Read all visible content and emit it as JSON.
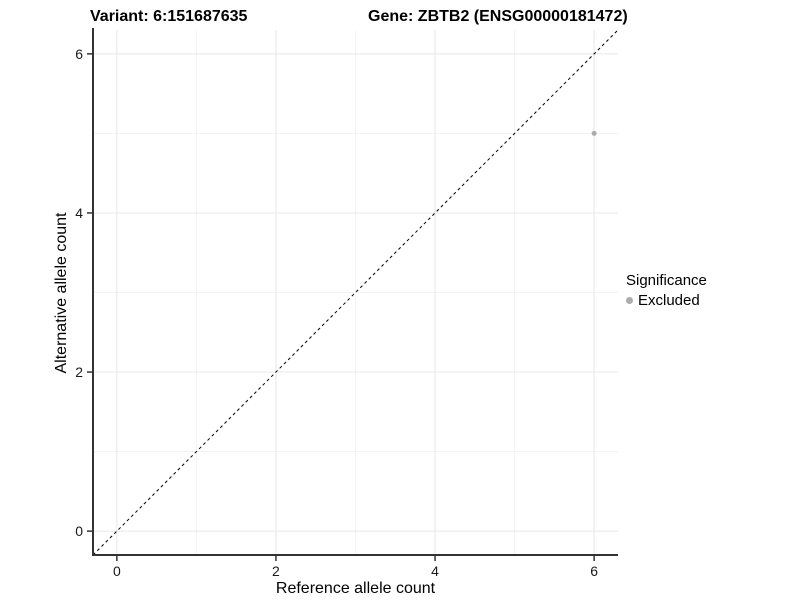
{
  "chart_data": {
    "type": "scatter",
    "titles": {
      "left": "Variant: 6:151687635",
      "right": "Gene: ZBTB2 (ENSG00000181472)"
    },
    "xlabel": "Reference allele count",
    "ylabel": "Alternative allele count",
    "xlim": [
      -0.3,
      6.3
    ],
    "ylim": [
      -0.3,
      6.3
    ],
    "xticks": [
      0,
      2,
      4,
      6
    ],
    "yticks": [
      0,
      2,
      4,
      6
    ],
    "minor_xticks": [
      1,
      3,
      5
    ],
    "minor_yticks": [
      1,
      3,
      5
    ],
    "grid": true,
    "points": [
      {
        "x": 6,
        "y": 5,
        "significance": "Excluded"
      }
    ],
    "reference_line": {
      "kind": "identity",
      "style": "dashed"
    },
    "legend": {
      "title": "Significance",
      "position": "right",
      "entries": [
        {
          "label": "Excluded",
          "color": "#ababab"
        }
      ]
    },
    "colors": {
      "background": "#ffffff",
      "point": "#ababab",
      "major_grid": "#e8e8e8",
      "minor_grid": "#f3f3f3",
      "axis_line": "#333333",
      "dashed_line": "#000000"
    }
  }
}
